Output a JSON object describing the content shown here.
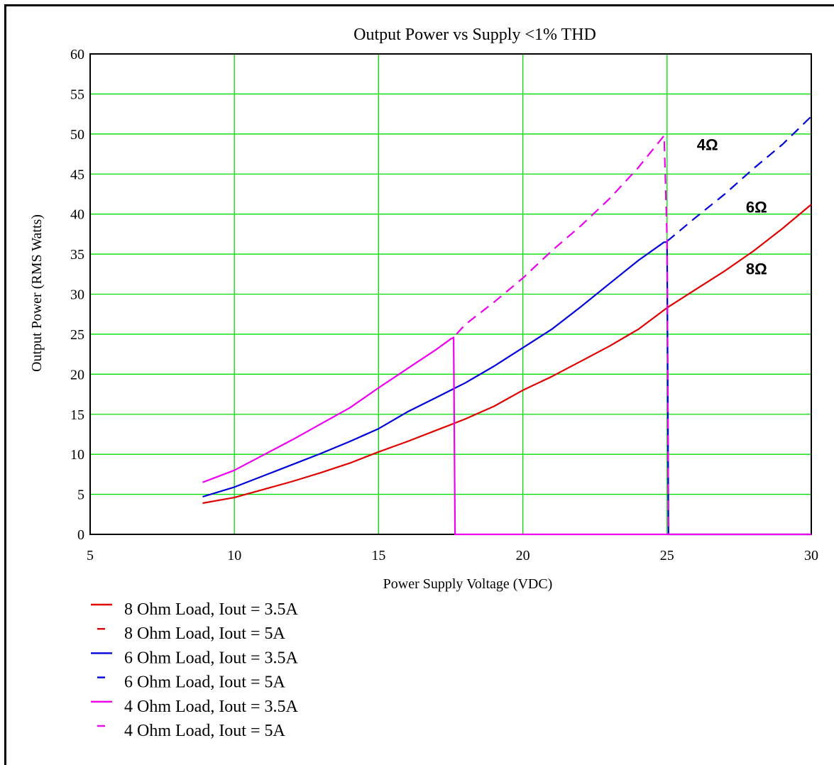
{
  "chart_data": {
    "type": "line",
    "title": "Output Power vs Supply <1% THD",
    "xlabel": "Power Supply Voltage (VDC)",
    "ylabel": "Output Power (RMS Watts)",
    "xlim": [
      5,
      30
    ],
    "ylim": [
      0,
      60
    ],
    "x_ticks": [
      "5",
      "10",
      "15",
      "20",
      "25",
      "30"
    ],
    "y_ticks": [
      "0",
      "5",
      "10",
      "15",
      "20",
      "25",
      "30",
      "35",
      "40",
      "45",
      "50",
      "55",
      "60"
    ],
    "grid": true,
    "grid_color": "#00dd00",
    "legend_position": "bottom-left",
    "annotations": [
      {
        "text": "4Ω",
        "x": 26.4,
        "y": 48
      },
      {
        "text": "6Ω",
        "x": 28.1,
        "y": 40.2
      },
      {
        "text": "8Ω",
        "x": 28.1,
        "y": 32.5
      }
    ],
    "series": [
      {
        "name": "8 Ohm Load, Iout = 3.5A",
        "color": "#e00000",
        "dash": "solid",
        "x": [
          8.9,
          10,
          11,
          12,
          13,
          14,
          15,
          16,
          17,
          18,
          19,
          20,
          21,
          22,
          23,
          24,
          25,
          26,
          27,
          28,
          29,
          30
        ],
        "y": [
          3.9,
          4.6,
          5.6,
          6.6,
          7.7,
          8.9,
          10.3,
          11.6,
          13.0,
          14.4,
          16.0,
          18.0,
          19.7,
          21.6,
          23.5,
          25.6,
          28.3,
          30.6,
          32.9,
          35.4,
          38.2,
          41.2
        ]
      },
      {
        "name": "8 Ohm Load, Iout = 5A",
        "color": "#e00000",
        "dash": "dashed",
        "x": [],
        "y": []
      },
      {
        "name": "6 Ohm Load, Iout = 3.5A",
        "color": "#0000dd",
        "dash": "solid",
        "x": [
          8.9,
          10,
          11,
          12,
          13,
          14,
          15,
          16,
          17,
          18,
          19,
          20,
          21,
          22,
          23,
          24,
          24.9,
          25.0,
          25.05,
          25.2,
          30
        ],
        "y": [
          4.7,
          5.9,
          7.3,
          8.7,
          10.1,
          11.6,
          13.2,
          15.3,
          17.1,
          18.9,
          21.0,
          23.3,
          25.6,
          28.4,
          31.3,
          34.2,
          36.5,
          36.5,
          0,
          0,
          0
        ]
      },
      {
        "name": "6 Ohm Load, Iout = 5A",
        "color": "#0000dd",
        "dash": "dashed",
        "x": [
          25.0,
          26,
          27,
          28,
          29,
          30
        ],
        "y": [
          36.6,
          39.6,
          42.5,
          45.7,
          48.7,
          52.2
        ]
      },
      {
        "name": "4 Ohm Load, Iout = 3.5A",
        "color": "#ee00ee",
        "dash": "solid",
        "x": [
          8.9,
          10,
          11,
          12,
          13,
          14,
          15,
          16,
          17,
          17.5,
          17.6,
          17.65,
          20,
          25,
          30
        ],
        "y": [
          6.5,
          8.0,
          9.9,
          11.8,
          13.8,
          15.8,
          18.3,
          20.7,
          23.1,
          24.4,
          24.6,
          0,
          0,
          0,
          0
        ]
      },
      {
        "name": "4 Ohm Load, Iout = 5A",
        "color": "#ee00ee",
        "dash": "dashed",
        "x": [
          17.7,
          18,
          19,
          20,
          21,
          22,
          23,
          24,
          24.9,
          25.0,
          25.05
        ],
        "y": [
          25.0,
          26.2,
          29.0,
          32.0,
          35.4,
          38.5,
          41.9,
          45.8,
          49.8,
          37.0,
          0
        ]
      }
    ]
  }
}
